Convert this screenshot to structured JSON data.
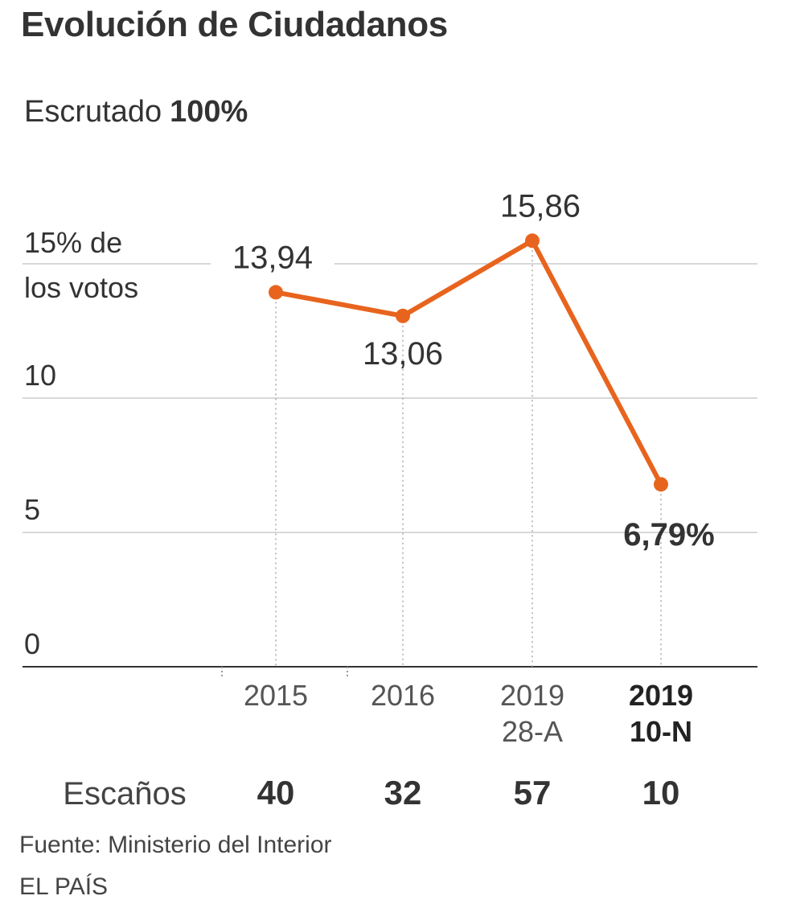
{
  "title": "Evolución de Ciudadanos",
  "scrutiny": {
    "label": "Escrutado",
    "value": "100%"
  },
  "chart_data": {
    "type": "line",
    "x_labels": [
      {
        "line1": "2015",
        "line2": "",
        "bold": false
      },
      {
        "line1": "2016",
        "line2": "",
        "bold": false
      },
      {
        "line1": "2019",
        "line2": "28-A",
        "bold": false
      },
      {
        "line1": "2019",
        "line2": "10-N",
        "bold": true
      }
    ],
    "values": [
      13.94,
      13.06,
      15.86,
      6.79
    ],
    "value_labels": [
      "13,94",
      "13,06",
      "15,86",
      "6,79%"
    ],
    "y_ticks": [
      {
        "value": 0,
        "label": "0",
        "label2": ""
      },
      {
        "value": 5,
        "label": "5",
        "label2": ""
      },
      {
        "value": 10,
        "label": "10",
        "label2": ""
      },
      {
        "value": 15,
        "label": "15% de",
        "label2": "los votos"
      }
    ],
    "ylim": [
      0,
      15
    ],
    "grid": true,
    "line_color": "#e8641e",
    "seats": {
      "label": "Escaños",
      "values": [
        "40",
        "32",
        "57",
        "10"
      ]
    }
  },
  "source": "Fuente: Ministerio del Interior",
  "brand": "EL PAÍS"
}
